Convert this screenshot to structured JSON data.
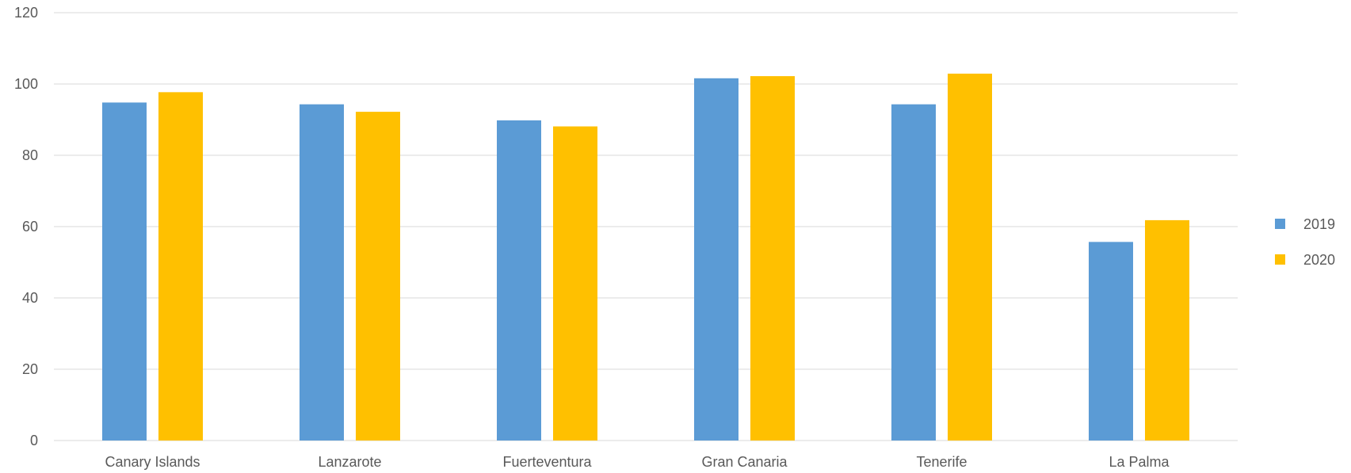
{
  "chart_data": {
    "type": "bar",
    "title": "",
    "xlabel": "",
    "ylabel": "",
    "categories": [
      "Canary Islands",
      "Lanzarote",
      "Fuerteventura",
      "Gran Canaria",
      "Tenerife",
      "La Palma"
    ],
    "series": [
      {
        "name": "2019",
        "color": "#5B9BD5",
        "values": [
          94.8,
          94.3,
          89.8,
          101.6,
          94.3,
          55.7
        ]
      },
      {
        "name": "2020",
        "color": "#FFC000",
        "values": [
          97.7,
          92.2,
          88.1,
          102.2,
          102.9,
          61.8
        ]
      }
    ],
    "ylim": [
      0,
      120
    ],
    "yticks": [
      0,
      20,
      40,
      60,
      80,
      100,
      120
    ],
    "grid": true,
    "legend_position": "right",
    "colors": {
      "grid": "#D9D9D9",
      "text": "#595959"
    }
  }
}
